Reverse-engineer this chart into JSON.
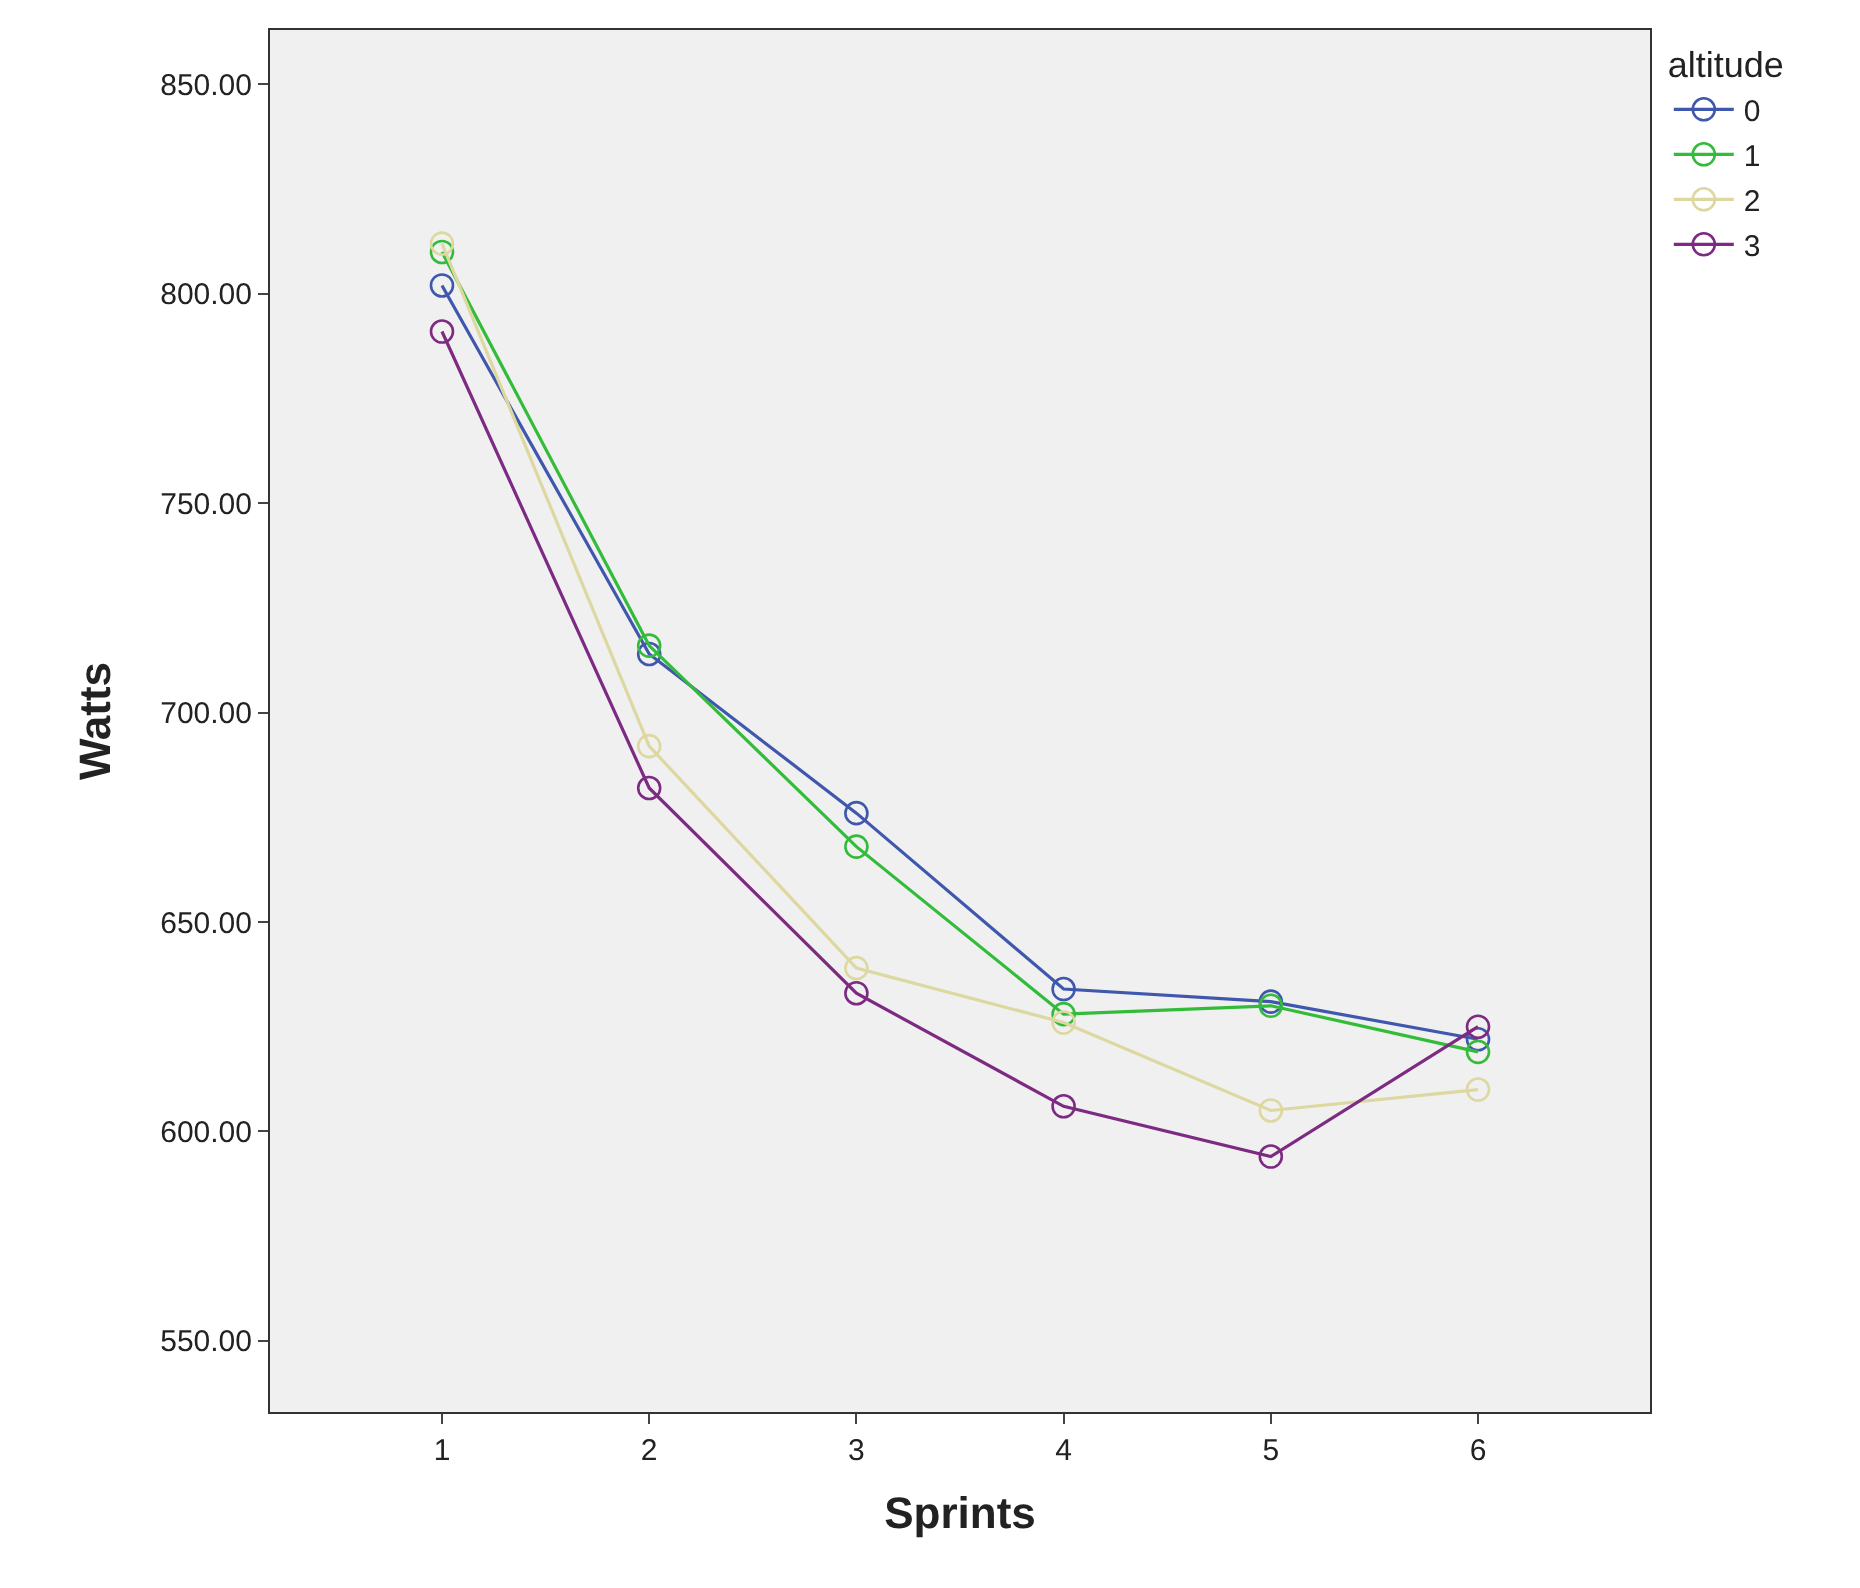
{
  "chart_data": {
    "type": "line",
    "xlabel": "Sprints",
    "ylabel": "Watts",
    "legend_title": "altitude",
    "legend": "top right",
    "grid": false,
    "marker": "circle",
    "line_style": "solid",
    "x": [
      1,
      2,
      3,
      4,
      5,
      6
    ],
    "xlim": [
      0.17,
      6.83
    ],
    "xticks": [
      1,
      2,
      3,
      4,
      5,
      6
    ],
    "ylim": [
      533,
      863
    ],
    "yticks": [
      {
        "value": 550,
        "label": "550.00"
      },
      {
        "value": 600,
        "label": "600.00"
      },
      {
        "value": 650,
        "label": "650.00"
      },
      {
        "value": 700,
        "label": "700.00"
      },
      {
        "value": 750,
        "label": "750.00"
      },
      {
        "value": 800,
        "label": "800.00"
      },
      {
        "value": 850,
        "label": "850.00"
      }
    ],
    "series": [
      {
        "name": "0",
        "color": "#3f58ad",
        "values": [
          802,
          714,
          676,
          634,
          631,
          622
        ]
      },
      {
        "name": "1",
        "color": "#33bb3a",
        "values": [
          810,
          716,
          668,
          628,
          630,
          619
        ]
      },
      {
        "name": "2",
        "color": "#dcd8a0",
        "values": [
          812,
          692,
          639,
          626,
          605,
          610
        ]
      },
      {
        "name": "3",
        "color": "#7d2a82",
        "values": [
          791,
          682,
          633,
          606,
          594,
          625
        ]
      }
    ]
  }
}
